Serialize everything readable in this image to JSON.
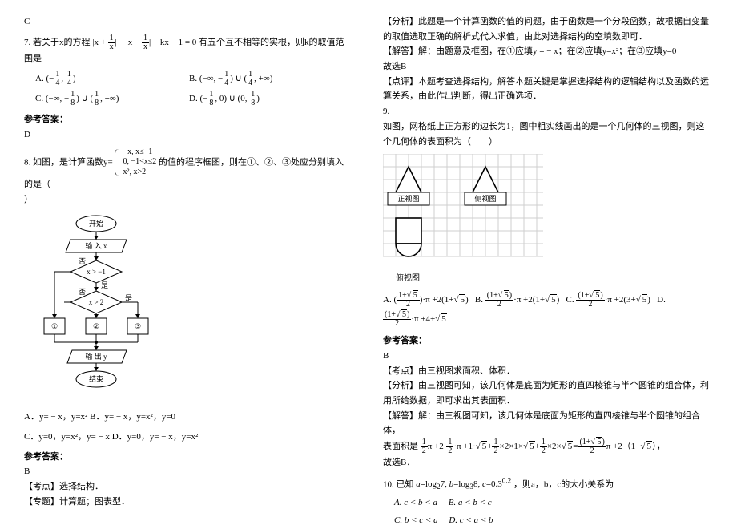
{
  "leftCol": {
    "c_label": "C",
    "q7": {
      "stem_prefix": "7. 若关于x的方程",
      "equation_html": "<span class='mathn'>|x + <span class='frac'><span class='num'>1</span><span class='den'>x</span></span>| − |x − <span class='frac'><span class='num'>1</span><span class='den'>x</span></span>| − kx − 1 = 0</span>",
      "stem_suffix": "有五个互不相等的实根，则k的取值范围是",
      "optA": "A.",
      "optA_math": "(−<span class='frac'><span class='num'>1</span><span class='den'>4</span></span>, <span class='frac'><span class='num'>1</span><span class='den'>4</span></span>)",
      "optB": "B.",
      "optB_math": "(−∞, −<span class='frac'><span class='num'>1</span><span class='den'>4</span></span>) ∪ (<span class='frac'><span class='num'>1</span><span class='den'>4</span></span>, +∞)",
      "optC": "C.",
      "optC_math": "(−∞, −<span class='frac'><span class='num'>1</span><span class='den'>8</span></span>) ∪ (<span class='frac'><span class='num'>1</span><span class='den'>8</span></span>, +∞)",
      "optD": "D.",
      "optD_math": "(−<span class='frac'><span class='num'>1</span><span class='den'>8</span></span>, 0) ∪ (0, <span class='frac'><span class='num'>1</span><span class='den'>8</span></span>)",
      "ans_label": "参考答案：",
      "ans": "D"
    },
    "q8": {
      "stem_prefix": "8. 如图，是计算函数y=",
      "piecewise_l1": "−x,  x≤−1",
      "piecewise_l2": "0,  −1<x≤2",
      "piecewise_l3": "x², x>2",
      "stem_suffix": "的值的程序框图，则在①、②、③处应分别填入的是（",
      "stem_end": "）",
      "flow_start": "开始",
      "flow_input": "输 入 x",
      "flow_c1": "x > −1",
      "flow_c2": "x > 2",
      "flow_yes": "是",
      "flow_no": "否",
      "flow_b1": "①",
      "flow_b2": "②",
      "flow_b3": "③",
      "flow_output": "输 出 y",
      "flow_end": "结束",
      "optLine1": "A．y= − x，y=x² B．y= − x，y=x²，y=0",
      "optLine2": "C．y=0，y=x²，y= − x D．y=0，y= − x，y=x²",
      "ans_label": "参考答案：",
      "ans": "B",
      "kd": "【考点】选择结构．",
      "zt": "【专题】计算题；图表型．"
    }
  },
  "rightCol": {
    "fx": "【分析】此题是一个计算函数的值的问题，由于函数是一个分段函数，故根据自变量的取值选取正确的解析式代入求值，由此对选择结构的空填数即可．",
    "jd": "【解答】解：由题意及框图，在①应填y = − x；在②应填y=x²；在③应填y=0",
    "choose": "故选B",
    "dp": "【点评】本题考查选择结构，解答本题关键是掌握选择结构的逻辑结构以及函数的运算关系，由此作出判断，得出正确选项．",
    "q9": {
      "num": "9.",
      "stem": "如图，网格纸上正方形的边长为1，图中粗实线画出的是一个几何体的三视图，则这个几何体的表面积为（　　）",
      "view1": "正视图",
      "view2": "侧视图",
      "view3": "俯视图",
      "optA_pre": "A. ",
      "optA_math": "(<span class='frac'><span class='num'>1+<span class='sqrt'><span>5</span></span></span><span class='den'>2</span></span>)·π +2(1+<span class='sqrt'><span>5</span></span>)",
      "optB_pre": "B. ",
      "optB_math": "<span class='frac'><span class='num'>(1+<span class='sqrt'><span>5</span></span>)</span><span class='den'>2</span></span>·π +2(1+<span class='sqrt'><span>5</span></span>)",
      "optC_pre": "C. ",
      "optC_math": "<span class='frac'><span class='num'>(1+<span class='sqrt'><span>5</span></span>)</span><span class='den'>2</span></span>·π +2(3+<span class='sqrt'><span>5</span></span>)",
      "optD_pre": "D. ",
      "optD_math": "<span class='frac'><span class='num'>(1+<span class='sqrt'><span>5</span></span>)</span><span class='den'>2</span></span>·π +4+<span class='sqrt'><span>5</span></span>",
      "ans_label": "参考答案：",
      "ans": "B",
      "kd": "【考点】由三视图求面积、体积．",
      "fx": "【分析】由三视图可知，该几何体是底面为矩形的直四棱锥与半个圆锥的组合体，利用所给数据，即可求出其表面积．",
      "jd_pre": "【解答】解：由三视图可知，该几何体是底面为矩形的直四棱锥与半个圆锥的组合体，",
      "area_pre": "表面积是",
      "area_math": "<span class='frac'><span class='num'>1</span><span class='den'>2</span></span>π +2·<span class='frac'><span class='num'>1</span><span class='den'>2</span></span>·π +1·<span class='sqrt'><span>5</span></span>+<span class='frac'><span class='num'>1</span><span class='den'>2</span></span>×2×1×<span class='sqrt'><span>5</span></span>+<span class='frac'><span class='num'>1</span><span class='den'>2</span></span>×2×<span class='sqrt'><span>5</span></span>=<span class='frac'><span class='num'>(1+<span class='sqrt'><span>5</span></span>)</span><span class='den'>2</span></span>π +2（1+<span class='sqrt'><span>5</span></span>），",
      "choose": "故选B．"
    },
    "q10": {
      "stem_pre": "10. 已知",
      "stem_math": "<span class='math'>a</span>=log<sub>2</sub>7, <span class='math'>b</span>=log<sub>3</sub>8, <span class='math'>c</span>=0.3<sup>0.2</sup>",
      "stem_suf": "，则a，b，c的大小关系为",
      "optA": "A. c < b < a",
      "optB": "B. a < b < c",
      "optC": "C. b < c < a",
      "optD": "D. c < a < b"
    }
  },
  "style": {
    "flow_w": 140,
    "flow_h": 230,
    "grid_line": "#b8b8b8",
    "triview_w": 220,
    "triview_h": 150
  }
}
